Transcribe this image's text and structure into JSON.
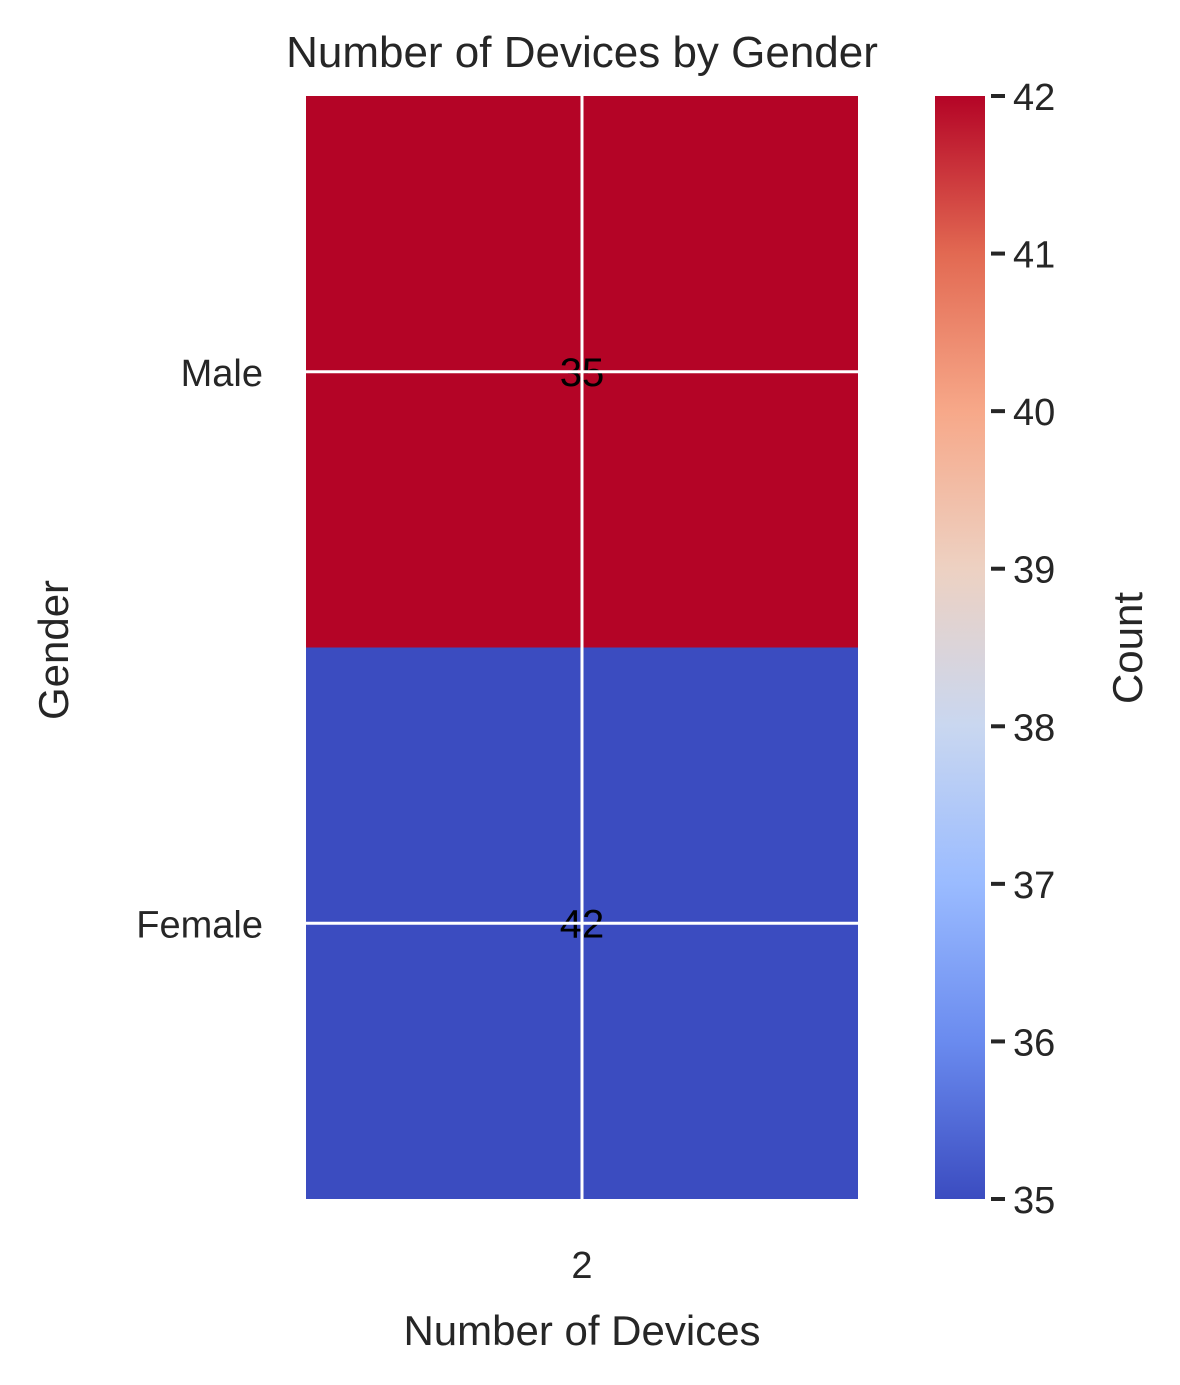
{
  "chart_data": {
    "type": "heatmap",
    "title": "Number of Devices by Gender",
    "xlabel": "Number of Devices",
    "ylabel": "Gender",
    "x_categories": [
      "2"
    ],
    "y_categories": [
      "Male",
      "Female"
    ],
    "values": [
      [
        35
      ],
      [
        42
      ]
    ],
    "cell_labels": [
      "35",
      "42"
    ],
    "colormap": "coolwarm",
    "colors": {
      "Male": "#b40426",
      "Female": "#3b4cc0",
      "grid": "#ffffff",
      "text": "#262626"
    },
    "colorbar": {
      "label": "Count",
      "min": 35,
      "max": 42,
      "ticks": [
        35,
        36,
        37,
        38,
        39,
        40,
        41,
        42
      ],
      "gradient": [
        "#3b4cc0",
        "#6a8bef",
        "#9abbff",
        "#c9d7f0",
        "#edd1c2",
        "#f7a889",
        "#e26952",
        "#b40426"
      ]
    },
    "grid": true
  }
}
